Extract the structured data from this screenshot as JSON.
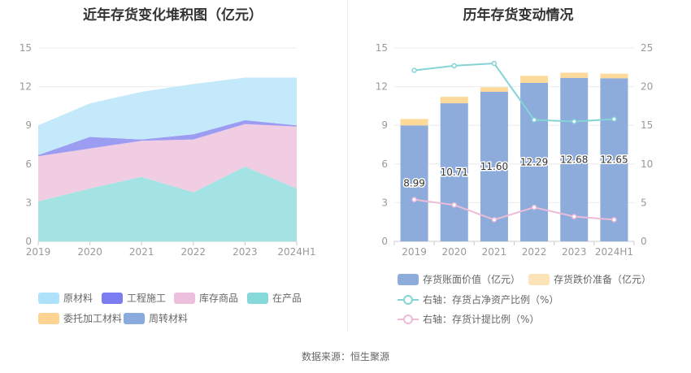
{
  "left_title": "近年存货变化堆积图（亿元）",
  "right_title": "历年存货变动情况",
  "source": "数据来源：恒生聚源",
  "chart_data": [
    {
      "type": "area",
      "stacked": true,
      "title": "近年存货变化堆积图（亿元）",
      "categories": [
        "2019",
        "2020",
        "2021",
        "2022",
        "2023",
        "2024H1"
      ],
      "ylim": [
        0,
        15
      ],
      "yticks": [
        0,
        3,
        6,
        9,
        12,
        15
      ],
      "grid": true,
      "legend_position": "bottom",
      "series": [
        {
          "name": "在产品",
          "color": "#a3e3e3",
          "values": [
            3.1,
            4.1,
            5.0,
            3.8,
            5.8,
            4.1
          ]
        },
        {
          "name": "库存商品",
          "color": "#f0cde2",
          "values": [
            3.5,
            3.1,
            2.8,
            4.1,
            3.3,
            4.8
          ]
        },
        {
          "name": "工程施工",
          "color": "#9c9cf2",
          "values": [
            0.1,
            0.9,
            0.1,
            0.4,
            0.3,
            0.1
          ]
        },
        {
          "name": "原材料",
          "color": "#c3e9fb",
          "values": [
            2.3,
            2.6,
            3.7,
            3.9,
            3.3,
            3.7
          ]
        },
        {
          "name": "委托加工材料",
          "color": "#fdd99a",
          "values": [
            0,
            0,
            0,
            0,
            0,
            0
          ]
        },
        {
          "name": "周转材料",
          "color": "#8aa9dc",
          "values": [
            0,
            0,
            0,
            0,
            0,
            0
          ]
        }
      ],
      "legend": [
        {
          "name": "原材料",
          "color": "#aee2fb"
        },
        {
          "name": "工程施工",
          "color": "#7b7cf0"
        },
        {
          "name": "库存商品",
          "color": "#ecbfdc"
        },
        {
          "name": "在产品",
          "color": "#86d8d9"
        },
        {
          "name": "委托加工材料",
          "color": "#fdd391"
        },
        {
          "name": "周转材料",
          "color": "#8aa9dc"
        }
      ]
    },
    {
      "type": "bar",
      "title": "历年存货变动情况",
      "categories": [
        "2019",
        "2020",
        "2021",
        "2022",
        "2023",
        "2024H1"
      ],
      "ylim": [
        0,
        15
      ],
      "yticks": [
        0,
        3,
        6,
        9,
        12,
        15
      ],
      "y2lim": [
        0,
        25
      ],
      "y2ticks": [
        0,
        5,
        10,
        15,
        20,
        25
      ],
      "grid": true,
      "legend_position": "bottom",
      "series": [
        {
          "name": "存货账面价值（亿元）",
          "kind": "bar",
          "axis": "left",
          "color": "#8eacdb",
          "values": [
            8.99,
            10.71,
            11.6,
            12.29,
            12.68,
            12.65
          ],
          "labels": [
            "8.99",
            "10.71",
            "11.60",
            "12.29",
            "12.68",
            "12.65"
          ]
        },
        {
          "name": "存货跌价准备（亿元）",
          "kind": "bar-stack",
          "axis": "left",
          "color": "#fdd99a",
          "values": [
            0.5,
            0.5,
            0.35,
            0.55,
            0.4,
            0.35
          ]
        },
        {
          "name": "右轴：存货占净资产比例（%）",
          "kind": "line",
          "axis": "right",
          "color": "#84d4d6",
          "values": [
            22.1,
            22.7,
            23.0,
            15.7,
            15.5,
            15.8
          ]
        },
        {
          "name": "右轴：存货计提比例（%）",
          "kind": "line",
          "axis": "right",
          "color": "#ecbcd8",
          "values": [
            5.4,
            4.7,
            2.8,
            4.4,
            3.2,
            2.8
          ]
        }
      ],
      "legend": [
        {
          "name": "存货账面价值（亿元）",
          "color": "#8eacdb",
          "kind": "bar"
        },
        {
          "name": "存货跌价准备（亿元）",
          "color": "#fde3b8",
          "kind": "bar"
        },
        {
          "name": "右轴：存货占净资产比例（%）",
          "color": "#84d4d6",
          "kind": "line"
        },
        {
          "name": "右轴：存货计提比例（%）",
          "color": "#ecbcd8",
          "kind": "line"
        }
      ]
    }
  ]
}
